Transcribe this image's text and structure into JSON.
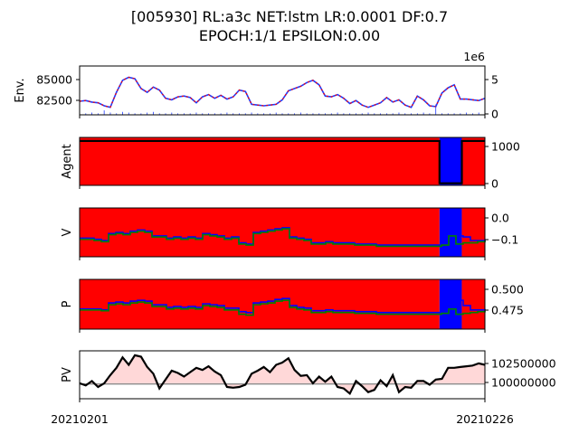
{
  "chart_data": {
    "type": "line",
    "title_lines": [
      "[005930] RL:a3c NET:lstm LR:0.0001 DF:0.7",
      "EPOCH:1/1 EPSILON:0.00"
    ],
    "x_ticks": [
      "20210201",
      "20210226"
    ],
    "panels": [
      {
        "ylabel": "Env.",
        "left_ticks": [
          "85000",
          "82500"
        ],
        "right_ticks": [
          "5",
          "0"
        ],
        "right_offset": "1e6",
        "series": [
          {
            "name": "price",
            "color": "#1f3cff",
            "values": [
              82800,
              82900,
              82700,
              82600,
              82200,
              82000,
              84000,
              85600,
              86000,
              85800,
              84500,
              84000,
              84700,
              84300,
              83200,
              83000,
              83400,
              83500,
              83300,
              82600,
              83400,
              83700,
              83200,
              83600,
              83100,
              83400,
              84300,
              84100,
              82400,
              82300,
              82200,
              82300,
              82400,
              83000,
              84200,
              84500,
              84800,
              85300,
              85600,
              85000,
              83500,
              83400,
              83700,
              83200,
              82500,
              82900,
              82300,
              82000,
              82300,
              82600,
              83300,
              82700,
              83000,
              82300,
              82000,
              83500,
              83000,
              82200,
              82100,
              83900,
              84600,
              85000,
              83100,
              83100,
              83000,
              82900,
              83200
            ]
          },
          {
            "name": "volume",
            "color": "#1f3cff",
            "values": [
              0.2,
              0.2,
              0.3,
              0.2,
              0.6,
              0.3,
              0.2,
              0.4,
              0.3,
              0.2,
              0.2,
              0.3,
              0.4,
              0.2,
              0.2,
              0.3,
              0.2,
              0.2,
              0.2,
              0.3,
              0.2,
              0.2,
              0.2,
              0.2,
              0.3,
              0.2,
              0.2,
              0.2,
              0.3,
              0.2,
              0.2,
              0.2,
              0.3,
              0.2,
              0.2,
              0.2,
              0.3,
              0.2,
              0.2,
              0.2,
              0.2,
              0.2,
              0.3,
              0.2,
              0.2,
              0.2,
              0.2,
              0.3,
              0.2,
              0.2,
              0.2,
              0.2,
              0.3,
              0.2,
              0.2,
              0.2,
              0.3,
              0.2,
              1.4,
              0.2,
              0.2,
              0.2,
              0.2,
              0.3,
              0.2,
              0.3,
              0.2
            ]
          }
        ],
        "ylim": [
          81000,
          87500
        ],
        "right_ylim": [
          0,
          6.6
        ]
      },
      {
        "ylabel": "Agent",
        "right_ticks": [
          "1000",
          "0"
        ],
        "background": [
          {
            "action": "sell",
            "color": "#ff0000",
            "from": 0,
            "to": 0.888
          },
          {
            "action": "buy",
            "color": "#0000ff",
            "from": 0.888,
            "to": 0.943
          },
          {
            "action": "sell",
            "color": "#ff0000",
            "from": 0.943,
            "to": 1
          }
        ],
        "series": [
          {
            "name": "holdings",
            "color": "#000000",
            "points": [
              [
                0,
                1200
              ],
              [
                0.888,
                1200
              ],
              [
                0.888,
                0
              ],
              [
                0.943,
                0
              ],
              [
                0.943,
                1200
              ],
              [
                1,
                1200
              ]
            ]
          }
        ],
        "ylim": [
          -60,
          1300
        ]
      },
      {
        "ylabel": "V",
        "right_ticks": [
          "0.0",
          "−0.1"
        ],
        "background": [
          {
            "action": "sell",
            "color": "#ff0000",
            "from": 0,
            "to": 0.888
          },
          {
            "action": "buy",
            "color": "#0000ff",
            "from": 0.888,
            "to": 0.943
          },
          {
            "action": "sell",
            "color": "#ff0000",
            "from": 0.943,
            "to": 1
          }
        ],
        "series": [
          {
            "name": "value_buy",
            "color": "#0000ff",
            "values": [
              -0.08,
              -0.08,
              -0.085,
              -0.09,
              -0.06,
              -0.055,
              -0.06,
              -0.05,
              -0.045,
              -0.05,
              -0.07,
              -0.07,
              -0.08,
              -0.075,
              -0.08,
              -0.075,
              -0.08,
              -0.06,
              -0.065,
              -0.07,
              -0.08,
              -0.075,
              -0.1,
              -0.105,
              -0.055,
              -0.05,
              -0.045,
              -0.04,
              -0.035,
              -0.075,
              -0.08,
              -0.085,
              -0.1,
              -0.1,
              -0.095,
              -0.1,
              -0.1,
              -0.1,
              -0.105,
              -0.105,
              -0.105,
              -0.11,
              -0.11,
              -0.11,
              -0.11,
              -0.11,
              -0.11,
              -0.11,
              -0.11,
              -0.11,
              -0.105,
              -0.04,
              -0.07,
              -0.075,
              -0.09,
              -0.09,
              -0.085
            ]
          },
          {
            "name": "value_sell",
            "color": "#008000",
            "values": [
              -0.085,
              -0.085,
              -0.09,
              -0.095,
              -0.065,
              -0.06,
              -0.065,
              -0.055,
              -0.05,
              -0.055,
              -0.075,
              -0.075,
              -0.085,
              -0.08,
              -0.085,
              -0.08,
              -0.085,
              -0.065,
              -0.07,
              -0.075,
              -0.085,
              -0.08,
              -0.105,
              -0.11,
              -0.06,
              -0.055,
              -0.05,
              -0.045,
              -0.04,
              -0.08,
              -0.085,
              -0.09,
              -0.105,
              -0.105,
              -0.1,
              -0.105,
              -0.105,
              -0.105,
              -0.11,
              -0.11,
              -0.11,
              -0.115,
              -0.115,
              -0.115,
              -0.115,
              -0.115,
              -0.115,
              -0.115,
              -0.115,
              -0.115,
              -0.11,
              -0.07,
              -0.105,
              -0.1,
              -0.1,
              -0.095,
              -0.09
            ]
          }
        ],
        "ylim": [
          -0.16,
          0.05
        ]
      },
      {
        "ylabel": "P",
        "right_ticks": [
          "0.500",
          "0.475"
        ],
        "background": [
          {
            "action": "sell",
            "color": "#ff0000",
            "from": 0,
            "to": 0.888
          },
          {
            "action": "buy",
            "color": "#0000ff",
            "from": 0.888,
            "to": 0.943
          },
          {
            "action": "sell",
            "color": "#ff0000",
            "from": 0.943,
            "to": 1
          }
        ],
        "series": [
          {
            "name": "policy_buy",
            "color": "#0000ff",
            "values": [
              0.478,
              0.478,
              0.478,
              0.477,
              0.485,
              0.486,
              0.485,
              0.487,
              0.488,
              0.487,
              0.483,
              0.483,
              0.48,
              0.481,
              0.48,
              0.481,
              0.48,
              0.484,
              0.483,
              0.482,
              0.479,
              0.479,
              0.475,
              0.474,
              0.485,
              0.486,
              0.487,
              0.489,
              0.49,
              0.482,
              0.48,
              0.479,
              0.476,
              0.476,
              0.477,
              0.476,
              0.476,
              0.476,
              0.475,
              0.475,
              0.475,
              0.474,
              0.474,
              0.474,
              0.474,
              0.474,
              0.474,
              0.474,
              0.474,
              0.474,
              0.475,
              0.5,
              0.488,
              0.482,
              0.477,
              0.477,
              0.478
            ]
          },
          {
            "name": "policy_sell",
            "color": "#008000",
            "values": [
              0.477,
              0.477,
              0.477,
              0.476,
              0.483,
              0.484,
              0.483,
              0.485,
              0.486,
              0.485,
              0.481,
              0.481,
              0.478,
              0.479,
              0.478,
              0.479,
              0.478,
              0.482,
              0.481,
              0.48,
              0.477,
              0.477,
              0.472,
              0.471,
              0.483,
              0.484,
              0.485,
              0.487,
              0.488,
              0.48,
              0.478,
              0.477,
              0.474,
              0.474,
              0.475,
              0.474,
              0.474,
              0.474,
              0.473,
              0.473,
              0.473,
              0.472,
              0.472,
              0.472,
              0.472,
              0.472,
              0.472,
              0.472,
              0.472,
              0.472,
              0.473,
              0.478,
              0.472,
              0.473,
              0.474,
              0.475,
              0.476
            ]
          }
        ],
        "ylim": [
          0.455,
          0.512
        ]
      },
      {
        "ylabel": "PV",
        "right_ticks": [
          "102500000",
          "100000000"
        ],
        "baseline": 100000000,
        "series": [
          {
            "name": "portfolio_value",
            "color": "#000000",
            "values": [
              100100000,
              99800000,
              100400000,
              99600000,
              100100000,
              101200000,
              102200000,
              103600000,
              102600000,
              103900000,
              103700000,
              102300000,
              101400000,
              99400000,
              100600000,
              101800000,
              101500000,
              101000000,
              101600000,
              102200000,
              101900000,
              102400000,
              101700000,
              101200000,
              99600000,
              99500000,
              99600000,
              99900000,
              101400000,
              101800000,
              102300000,
              101600000,
              102600000,
              102900000,
              103500000,
              101900000,
              101100000,
              101200000,
              100100000,
              101000000,
              100300000,
              101000000,
              99600000,
              99400000,
              98700000,
              100400000,
              99700000,
              98900000,
              99200000,
              100500000,
              99700000,
              101200000,
              98900000,
              99600000,
              99500000,
              100400000,
              100400000,
              99900000,
              100600000,
              100700000,
              102200000,
              102200000,
              102300000,
              102400000,
              102500000,
              102800000,
              102600000
            ]
          }
        ],
        "ylim": [
          98000000,
          104500000
        ]
      }
    ]
  }
}
